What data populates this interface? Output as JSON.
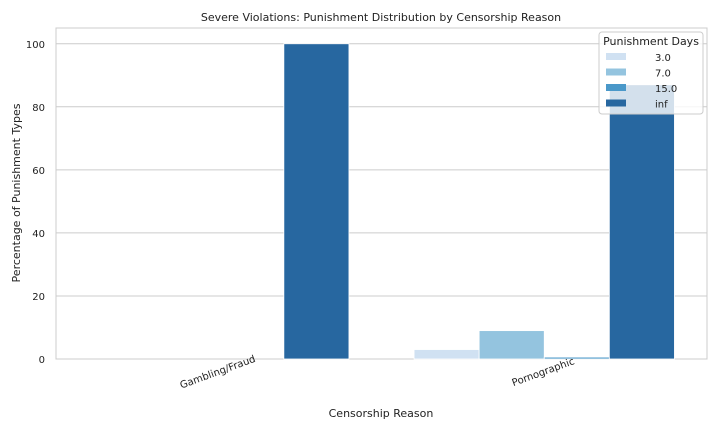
{
  "chart_data": {
    "type": "bar",
    "title": "Severe Violations: Punishment Distribution by Censorship Reason",
    "xlabel": "Censorship Reason",
    "ylabel": "Percentage of Punishment Types",
    "categories": [
      "Gambling/Fraud",
      "Pornographic"
    ],
    "ylim": [
      0,
      105
    ],
    "yticks": [
      0,
      20,
      40,
      60,
      80,
      100
    ],
    "grid": true,
    "legend": {
      "title": "Punishment Days",
      "placement": "top-right"
    },
    "series": [
      {
        "name": "3.0",
        "color": "#d0e1f2",
        "values": [
          0,
          3
        ]
      },
      {
        "name": "7.0",
        "color": "#94c4df",
        "values": [
          0,
          9
        ]
      },
      {
        "name": "15.0",
        "color": "#4a98c9",
        "values": [
          0,
          0.6
        ]
      },
      {
        "name": "inf",
        "color": "#2767a0",
        "values": [
          100,
          87
        ]
      }
    ]
  }
}
